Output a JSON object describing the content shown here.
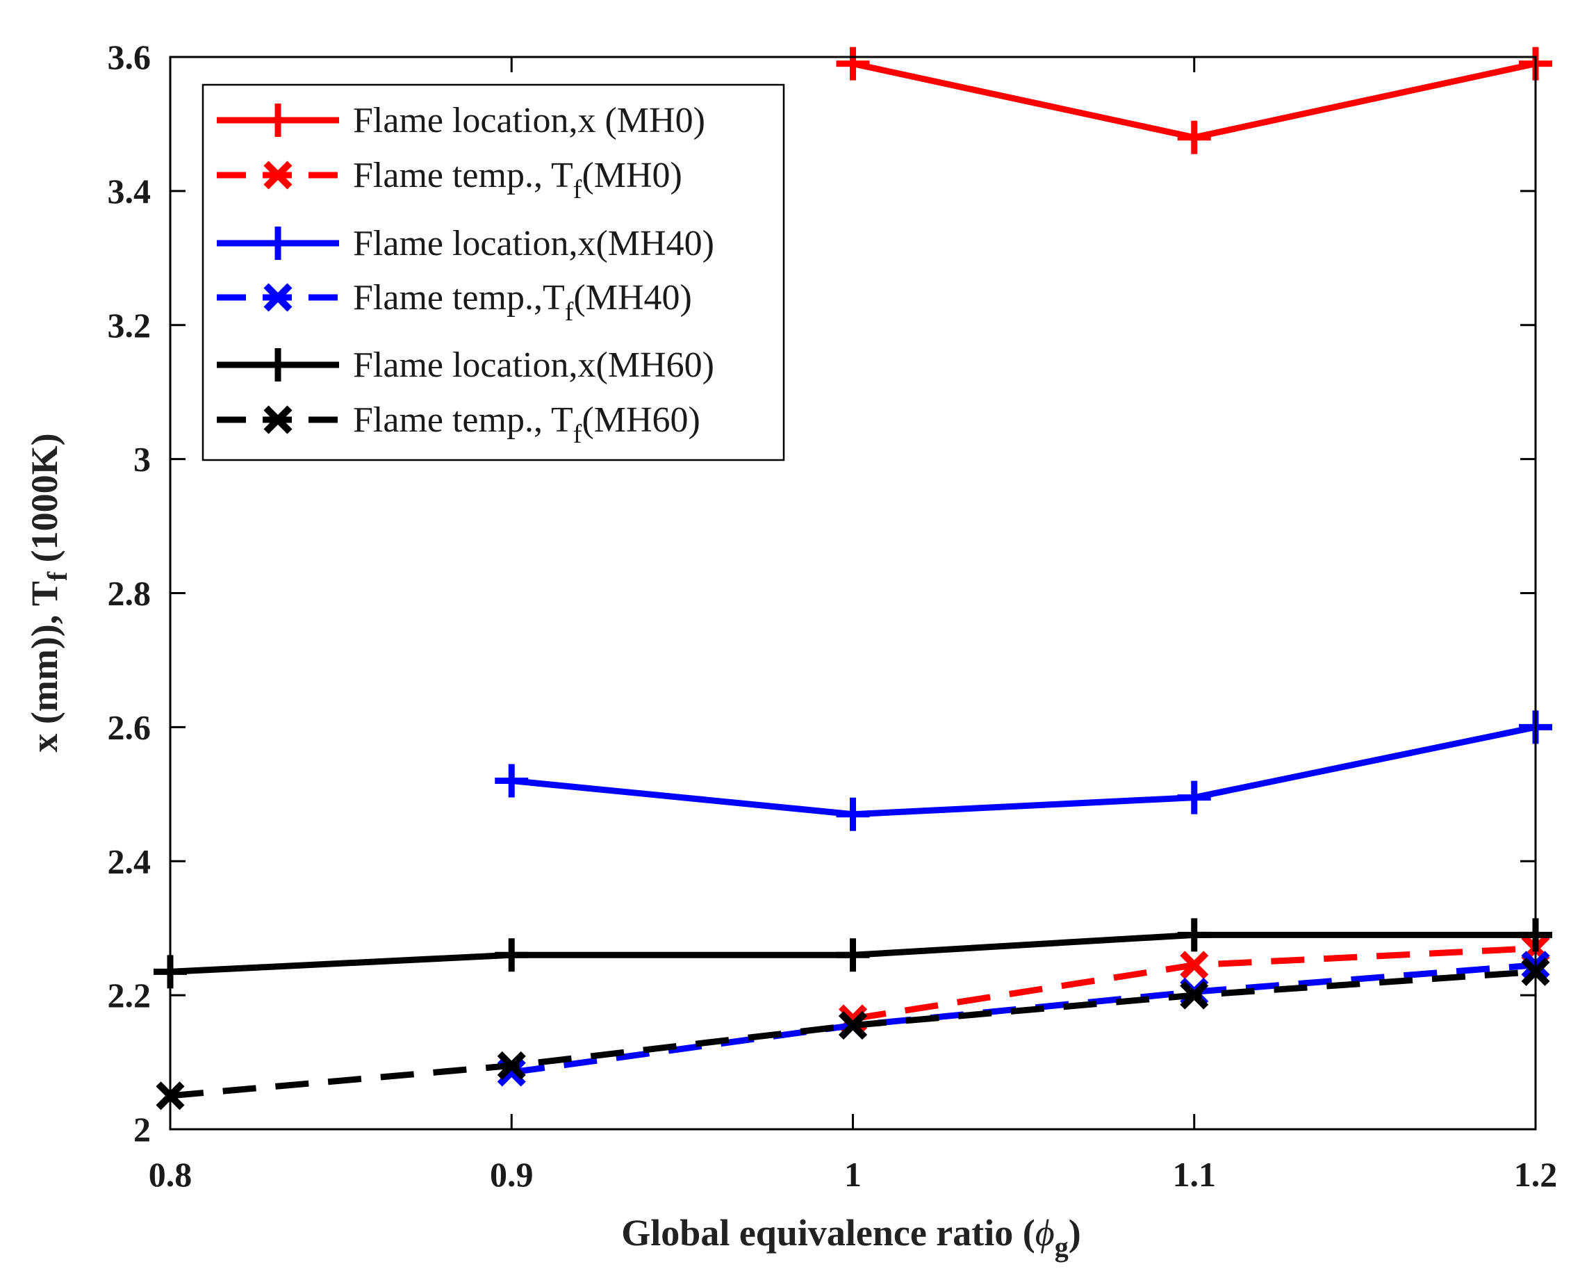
{
  "chart_data": {
    "type": "line",
    "title": "",
    "xlabel": "Global equivalence ratio (",
    "xlabel_symbol": "ϕ",
    "xlabel_sub": "g",
    "xlabel_close": ")",
    "ylabel": "x (mm)), T",
    "ylabel_sub": "f",
    "ylabel_tail": " (1000K)",
    "xlim": [
      0.8,
      1.2
    ],
    "ylim": [
      2,
      3.6
    ],
    "xticks": [
      0.8,
      0.9,
      1,
      1.1,
      1.2
    ],
    "xtick_labels": [
      "0.8",
      "0.9",
      "1",
      "1.1",
      "1.2"
    ],
    "yticks": [
      2,
      2.2,
      2.4,
      2.6,
      2.8,
      3,
      3.2,
      3.4,
      3.6
    ],
    "ytick_labels": [
      "2",
      "2.2",
      "2.4",
      "2.6",
      "2.8",
      "3",
      "3.2",
      "3.4",
      "3.6"
    ],
    "grid": false,
    "legend_position": "top-left",
    "series": [
      {
        "name": "Flame location,x (MH0)",
        "legend_main": "Flame location,x (MH0)",
        "legend_sub": "",
        "legend_tail": "",
        "color": "#ff0000",
        "dash": "solid",
        "marker": "plus",
        "x": [
          1.0,
          1.1,
          1.2
        ],
        "values": [
          3.59,
          3.48,
          3.59
        ]
      },
      {
        "name": "Flame temp., Tf(MH0)",
        "legend_main": "Flame temp., T",
        "legend_sub": "f",
        "legend_tail": "(MH0)",
        "color": "#ff0000",
        "dash": "dashed",
        "marker": "x",
        "x": [
          1.0,
          1.1,
          1.2
        ],
        "values": [
          2.165,
          2.245,
          2.27
        ]
      },
      {
        "name": "Flame location,x(MH40)",
        "legend_main": "Flame location,x(MH40)",
        "legend_sub": "",
        "legend_tail": "",
        "color": "#0000ff",
        "dash": "solid",
        "marker": "plus",
        "x": [
          0.9,
          1.0,
          1.1,
          1.2
        ],
        "values": [
          2.52,
          2.47,
          2.495,
          2.6
        ]
      },
      {
        "name": "Flame temp.,Tf(MH40)",
        "legend_main": "Flame temp.,T",
        "legend_sub": "f",
        "legend_tail": "(MH40)",
        "color": "#0000ff",
        "dash": "dashed",
        "marker": "x",
        "x": [
          0.9,
          1.0,
          1.1,
          1.2
        ],
        "values": [
          2.085,
          2.155,
          2.205,
          2.245
        ]
      },
      {
        "name": "Flame location,x(MH60)",
        "legend_main": "Flame location,x(MH60)",
        "legend_sub": "",
        "legend_tail": "",
        "color": "#000000",
        "dash": "solid",
        "marker": "plus",
        "x": [
          0.8,
          0.9,
          1.0,
          1.1,
          1.2
        ],
        "values": [
          2.235,
          2.26,
          2.26,
          2.29,
          2.29
        ]
      },
      {
        "name": "Flame temp., Tf(MH60)",
        "legend_main": "Flame temp., T",
        "legend_sub": "f",
        "legend_tail": "(MH60)",
        "color": "#000000",
        "dash": "dashed",
        "marker": "x",
        "x": [
          0.8,
          0.9,
          1.0,
          1.1,
          1.2
        ],
        "values": [
          2.05,
          2.095,
          2.155,
          2.2,
          2.235
        ]
      }
    ]
  }
}
